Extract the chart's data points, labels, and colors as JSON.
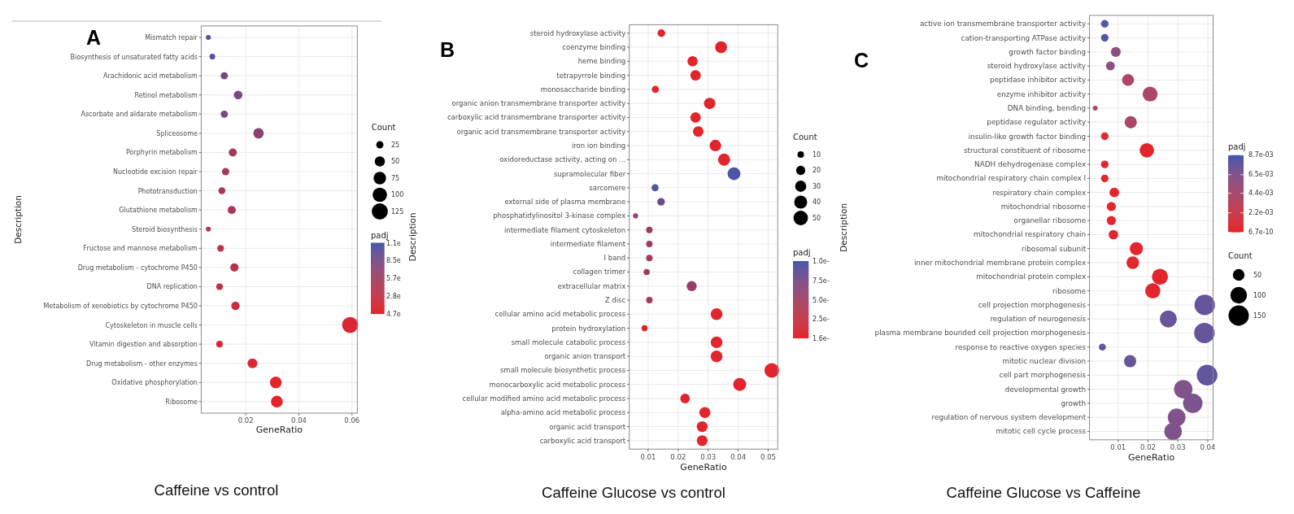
{
  "chart_data": [
    {
      "type": "bubble",
      "title": "A",
      "xlabel": "GeneRatio",
      "ylabel": "Description",
      "legend_title": "Count",
      "clabel": "padj",
      "orientation": "horizontal",
      "grid": true,
      "categories": [
        "Mismatch repair",
        "Biosynthesis of unsaturated fatty acids",
        "Arachidonic acid metabolism",
        "Retinol metabolism",
        "Ascorbate and aldarate metabolism",
        "Spliceosome",
        "Porphyrin metabolism",
        "Nucleotide excision repair",
        "Phototransduction",
        "Glutathione metabolism",
        "Steroid biosynthesis",
        "Fructose and mannose metabolism",
        "Drug metabolism - cytochrome P450",
        "DNA replication",
        "Metabolism of xenobiotics by cytochrome P450",
        "Cytoskeleton in muscle cells",
        "Vitamin digestion and absorption",
        "Drug metabolism - other enzymes",
        "Oxidative phosphorylation",
        "Ribosome"
      ],
      "values": [
        0.0059,
        0.0074,
        0.0119,
        0.0171,
        0.0119,
        0.0248,
        0.0151,
        0.0124,
        0.011,
        0.0147,
        0.0059,
        0.0105,
        0.0157,
        0.0101,
        0.0161,
        0.0593,
        0.0101,
        0.0225,
        0.0313,
        0.0317
      ],
      "sizes": [
        12,
        16,
        25,
        36,
        25,
        52,
        32,
        26,
        23,
        31,
        12,
        22,
        33,
        21,
        34,
        125,
        21,
        47,
        66,
        67
      ],
      "colors": [
        "#4c55a5",
        "#5353a0",
        "#744886",
        "#7c467f",
        "#7c467f",
        "#8c4172",
        "#a4395f",
        "#a4395f",
        "#a7385d",
        "#ab3659",
        "#b43453",
        "#b43453",
        "#bc314c",
        "#c32f46",
        "#cc2c3f",
        "#db2733",
        "#d72836",
        "#db2733",
        "#e1252e",
        "#e3242d"
      ],
      "size_legend": [
        25,
        50,
        75,
        100,
        125
      ],
      "xlim": [
        0.0032,
        0.062
      ],
      "xticks": [
        0.02,
        0.04,
        0.06
      ],
      "annotations": [
        "1.1e",
        "8.5e",
        "5.7e",
        "2.8e",
        "4.7e",
        "Caffeine vs control"
      ]
    },
    {
      "type": "bubble",
      "title": "B",
      "xlabel": "GeneRatio",
      "ylabel": "Description",
      "legend_title": "Count",
      "clabel": "padj",
      "orientation": "horizontal",
      "grid": true,
      "categories": [
        "steroid hydroxylase activity",
        "coenzyme binding",
        "heme binding",
        "tetrapyrrole binding",
        "monosaccharide binding",
        "organic anion transmembrane transporter activity",
        "carboxylic acid transmembrane transporter activity",
        "organic acid transmembrane transporter activity",
        "iron ion binding",
        "oxidoreductase activity, acting on ...",
        "supramolecular fiber",
        "sarcomere",
        "external side of plasma membrane",
        "phosphatidylinositol 3-kinase complex",
        "intermediate filament cytoskeleton",
        "intermediate filament",
        "I band",
        "collagen trimer",
        "extracellular matrix",
        "Z disc",
        "cellular amino acid metabolic process",
        "protein hydroxylation",
        "small molecule catabolic process",
        "organic anion transport",
        "small molecule biosynthetic process",
        "monocarboxylic acid metabolic process",
        "cellular modified amino acid metabolic process",
        "alpha-amino acid metabolic process",
        "organic acid transport",
        "carboxylic acid transport"
      ],
      "values": [
        0.0144,
        0.0343,
        0.0248,
        0.0258,
        0.0124,
        0.0305,
        0.0258,
        0.0267,
        0.0324,
        0.0353,
        0.0386,
        0.0123,
        0.0143,
        0.0058,
        0.0104,
        0.0104,
        0.0104,
        0.0095,
        0.0245,
        0.0104,
        0.0328,
        0.0088,
        0.0328,
        0.0328,
        0.0512,
        0.0405,
        0.0223,
        0.0289,
        0.028,
        0.028
      ],
      "sizes": [
        14,
        34,
        25,
        26,
        12,
        31,
        26,
        27,
        32,
        35,
        39,
        12,
        14,
        6,
        10,
        10,
        10,
        9,
        24,
        10,
        33,
        9,
        33,
        33,
        51,
        40,
        22,
        29,
        28,
        28
      ],
      "colors": [
        "#e1252f",
        "#e2252d",
        "#e2252d",
        "#e2252d",
        "#e1252f",
        "#e2252d",
        "#e2252d",
        "#e2252d",
        "#e2252d",
        "#e2252d",
        "#4b55a6",
        "#53539f",
        "#6b4b8c",
        "#943e6c",
        "#a03a62",
        "#a03a62",
        "#a4395f",
        "#9c3b66",
        "#973d69",
        "#a4395f",
        "#e2252d",
        "#e1252f",
        "#e2252d",
        "#e2252d",
        "#e2252d",
        "#e2252d",
        "#e2252d",
        "#e2252d",
        "#e2252d",
        "#e2252d"
      ],
      "size_legend": [
        10,
        20,
        30,
        40,
        50
      ],
      "xlim": [
        0.0037,
        0.0532
      ],
      "xticks": [
        0.01,
        0.02,
        0.03,
        0.04,
        0.05
      ],
      "annotations": [
        "1.0e-",
        "7.5e-",
        "5.0e-",
        "2.5e-",
        "1.6e-",
        "Caffeine Glucose vs control"
      ]
    },
    {
      "type": "bubble",
      "title": "C",
      "xlabel": "GeneRatio",
      "ylabel": "Description",
      "legend_title": "Count",
      "clabel": "padj",
      "orientation": "horizontal",
      "grid": true,
      "categories": [
        "active ion transmembrane transporter activity",
        "cation-transporting ATPase activity",
        "growth factor binding",
        "steroid hydroxylase activity",
        "peptidase inhibitor activity",
        "enzyme inhibitor activity",
        "DNA binding, bending",
        "peptidase regulator activity",
        "insulin-like growth factor binding",
        "structural constituent of ribosome",
        "NADH dehydrogenase complex",
        "mitochondrial respiratory chain complex I",
        "respiratory chain complex",
        "mitochondrial ribosome",
        "organellar ribosome",
        "mitochondrial respiratory chain",
        "ribosomal subunit",
        "inner mitochondrial membrane protein complex",
        "mitochondrial protein complex",
        "ribosome",
        "cell projection morphogenesis",
        "regulation of neurogenesis",
        "plasma membrane bounded cell projection morphogenesis",
        "response to reactive oxygen species",
        "mitotic nuclear division",
        "cell part morphogenesis",
        "developmental growth",
        "growth",
        "regulation of nervous system development",
        "mitotic cell cycle process"
      ],
      "values": [
        0.0055,
        0.0055,
        0.0092,
        0.0074,
        0.0133,
        0.0207,
        0.0023,
        0.0142,
        0.0055,
        0.0196,
        0.0055,
        0.0055,
        0.0087,
        0.0077,
        0.0077,
        0.0084,
        0.0161,
        0.0149,
        0.024,
        0.0216,
        0.039,
        0.0268,
        0.0389,
        0.0047,
        0.014,
        0.0398,
        0.0318,
        0.035,
        0.0296,
        0.0284
      ],
      "sizes": [
        21,
        21,
        36,
        29,
        52,
        81,
        9,
        55,
        21,
        76,
        21,
        21,
        34,
        30,
        30,
        33,
        63,
        58,
        94,
        84,
        152,
        105,
        152,
        18,
        55,
        155,
        124,
        137,
        115,
        111
      ],
      "cvalues": [
        0.0083,
        0.0083,
        0.0058,
        0.0058,
        0.004,
        0.004,
        0.0035,
        0.004,
        0.0002,
        0.0001,
        0.0001,
        0.0001,
        0.0001,
        0.0001,
        0.0001,
        0.0001,
        0.0001,
        0.0001,
        0.0001,
        0.0001,
        0.0076,
        0.0076,
        0.0076,
        0.0078,
        0.0076,
        0.0078,
        0.0064,
        0.0068,
        0.0064,
        0.0065
      ],
      "size_legend": [
        50,
        100,
        150
      ],
      "clim": [
        6.7e-10,
        0.0087
      ],
      "cticks": [
        {
          "value": 6.7e-10,
          "label": "6.7e-10"
        },
        {
          "value": 0.0022,
          "label": "2.2e-03"
        },
        {
          "value": 0.0044,
          "label": "4.4e-03"
        },
        {
          "value": 0.0065,
          "label": "6.5e-03"
        },
        {
          "value": 0.0087,
          "label": "8.7e-03"
        }
      ],
      "xlim": [
        0.0004,
        0.0418
      ],
      "xticks": [
        0.01,
        0.02,
        0.03,
        0.04
      ],
      "annotations": [
        "Caffeine Glucose vs Caffeine"
      ]
    }
  ]
}
